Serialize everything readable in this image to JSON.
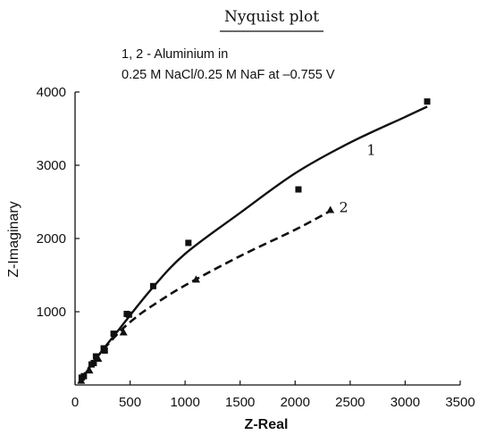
{
  "chart_data": {
    "type": "scatter",
    "title": "Nyquist plot",
    "annotation": [
      "1, 2 - Aluminium in",
      "0.25 M NaCl/0.25 M NaF at –0.755 V"
    ],
    "xlabel": "Z-Real",
    "ylabel": "Z-Imaginary",
    "xlim": [
      0,
      3500
    ],
    "ylim": [
      0,
      4000
    ],
    "xticks": [
      0,
      500,
      1000,
      1500,
      2000,
      2500,
      3000,
      3500
    ],
    "yticks": [
      1000,
      2000,
      3000,
      4000
    ],
    "grid": false,
    "series": [
      {
        "name": "1",
        "marker": "square",
        "line_style": "solid",
        "points": [
          [
            60,
            100
          ],
          [
            80,
            120
          ],
          [
            150,
            280
          ],
          [
            170,
            300
          ],
          [
            190,
            390
          ],
          [
            260,
            500
          ],
          [
            270,
            470
          ],
          [
            350,
            700
          ],
          [
            470,
            970
          ],
          [
            490,
            960
          ],
          [
            710,
            1350
          ],
          [
            1030,
            1940
          ],
          [
            2030,
            2670
          ],
          [
            3200,
            3870
          ]
        ],
        "fit": [
          [
            50,
            60
          ],
          [
            200,
            380
          ],
          [
            400,
            760
          ],
          [
            700,
            1320
          ],
          [
            1000,
            1790
          ],
          [
            1500,
            2350
          ],
          [
            2000,
            2890
          ],
          [
            2500,
            3310
          ],
          [
            3000,
            3660
          ],
          [
            3200,
            3800
          ]
        ]
      },
      {
        "name": "2",
        "marker": "triangle",
        "line_style": "dashed",
        "points": [
          [
            55,
            60
          ],
          [
            130,
            200
          ],
          [
            210,
            360
          ],
          [
            440,
            720
          ],
          [
            1100,
            1440
          ],
          [
            2320,
            2390
          ]
        ],
        "fit": [
          [
            50,
            80
          ],
          [
            200,
            380
          ],
          [
            400,
            720
          ],
          [
            550,
            920
          ],
          [
            700,
            1080
          ],
          [
            1000,
            1360
          ],
          [
            1500,
            1760
          ],
          [
            2000,
            2120
          ],
          [
            2300,
            2360
          ]
        ]
      }
    ]
  }
}
